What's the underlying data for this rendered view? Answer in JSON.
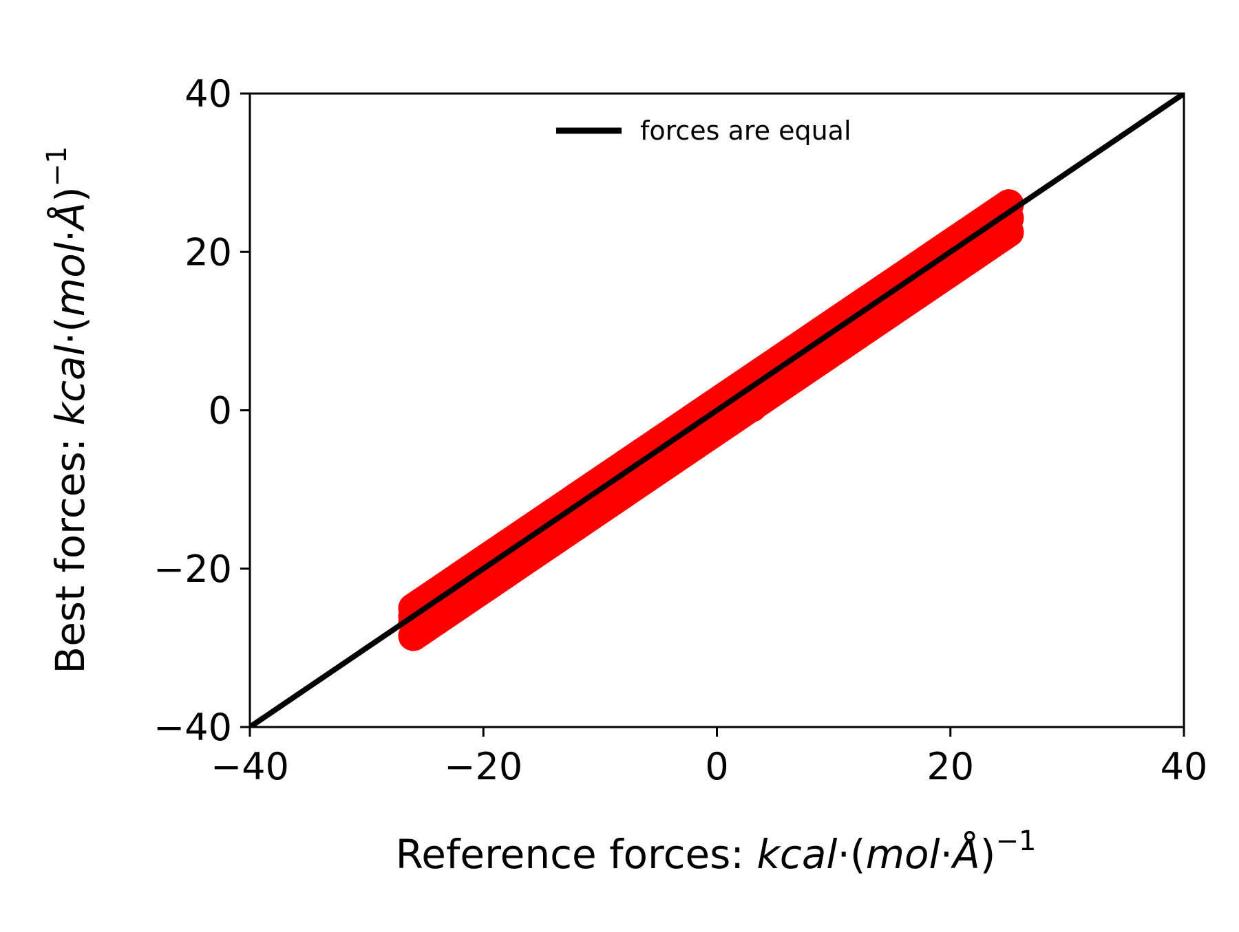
{
  "chart_data": {
    "type": "scatter",
    "xlabel": {
      "text": "Reference forces: ",
      "math_italic_1": "kcal",
      "dot": "·",
      "paren_open": "(",
      "math_italic_2": "mol",
      "math_italic_3": "Å",
      "paren_close": ")",
      "superscript": "−1"
    },
    "ylabel": {
      "text": "Best forces: ",
      "math_italic_1": "kcal",
      "dot": "·",
      "paren_open": "(",
      "math_italic_2": "mol",
      "math_italic_3": "Å",
      "paren_close": ")",
      "superscript": "−1"
    },
    "xlim": [
      -40,
      40
    ],
    "ylim": [
      -40,
      40
    ],
    "xticks": [
      -40,
      -20,
      0,
      20,
      40
    ],
    "yticks": [
      -40,
      -20,
      0,
      20,
      40
    ],
    "xtick_labels": [
      "−40",
      "−20",
      "0",
      "20",
      "40"
    ],
    "ytick_labels": [
      "−40",
      "−20",
      "0",
      "20",
      "40"
    ],
    "grid": false,
    "legend": {
      "placement": "upper center",
      "entries": [
        "forces are equal"
      ]
    },
    "series": [
      {
        "kind": "scatter",
        "color": "#ff0000",
        "x_range": [
          -26,
          25
        ],
        "y_offset_range": [
          -2.5,
          1.0
        ],
        "points": [
          [
            -26.0,
            -26.0
          ],
          [
            -25.2,
            -25.6
          ],
          [
            -24.5,
            -25.3
          ],
          [
            -23.8,
            -24.4
          ],
          [
            -23.0,
            -24.0
          ],
          [
            -22.3,
            -23.0
          ],
          [
            -21.5,
            -22.8
          ],
          [
            -20.7,
            -21.5
          ],
          [
            -19.8,
            -21.3
          ],
          [
            -19.0,
            -20.4
          ],
          [
            -18.0,
            -19.6
          ],
          [
            -17.0,
            -18.8
          ],
          [
            -16.0,
            -17.5
          ],
          [
            -15.0,
            -16.8
          ],
          [
            -14.0,
            -15.6
          ],
          [
            -13.0,
            -14.9
          ],
          [
            -12.0,
            -13.8
          ],
          [
            -11.0,
            -13.0
          ],
          [
            -10.0,
            -11.7
          ],
          [
            -9.0,
            -11.0
          ],
          [
            -8.0,
            -9.8
          ],
          [
            -7.0,
            -8.9
          ],
          [
            -6.0,
            -7.9
          ],
          [
            -5.0,
            -7.0
          ],
          [
            -4.0,
            -5.8
          ],
          [
            -3.0,
            -5.0
          ],
          [
            -2.0,
            -3.8
          ],
          [
            -1.0,
            -3.0
          ],
          [
            0.0,
            -2.0
          ],
          [
            1.0,
            -1.0
          ],
          [
            2.0,
            0.0
          ],
          [
            3.0,
            0.8
          ],
          [
            4.0,
            1.9
          ],
          [
            5.0,
            2.8
          ],
          [
            6.0,
            3.8
          ],
          [
            7.0,
            4.7
          ],
          [
            8.0,
            5.9
          ],
          [
            9.0,
            6.6
          ],
          [
            10.0,
            7.8
          ],
          [
            11.0,
            8.6
          ],
          [
            12.0,
            9.8
          ],
          [
            13.0,
            10.5
          ],
          [
            14.0,
            11.8
          ],
          [
            15.0,
            12.6
          ],
          [
            16.0,
            13.8
          ],
          [
            17.0,
            14.6
          ],
          [
            18.0,
            15.8
          ],
          [
            19.0,
            16.6
          ],
          [
            20.0,
            17.8
          ],
          [
            21.0,
            18.9
          ],
          [
            21.8,
            20.0
          ],
          [
            22.5,
            21.2
          ],
          [
            23.2,
            22.3
          ],
          [
            23.8,
            23.3
          ],
          [
            24.4,
            24.2
          ],
          [
            24.8,
            24.8
          ],
          [
            -24.0,
            -24.3
          ],
          [
            -20.0,
            -19.8
          ],
          [
            -15.0,
            -14.6
          ],
          [
            -10.0,
            -9.6
          ],
          [
            -5.0,
            -4.7
          ],
          [
            0.0,
            0.4
          ],
          [
            5.0,
            5.3
          ],
          [
            10.0,
            10.3
          ],
          [
            15.0,
            15.2
          ],
          [
            20.0,
            20.3
          ],
          [
            -22.0,
            -24.0
          ],
          [
            -17.0,
            -19.3
          ],
          [
            -12.0,
            -14.3
          ],
          [
            -7.0,
            -9.3
          ],
          [
            -2.0,
            -4.5
          ],
          [
            3.0,
            0.4
          ],
          [
            8.0,
            5.6
          ],
          [
            13.0,
            10.7
          ],
          [
            18.0,
            15.6
          ],
          [
            22.0,
            20.6
          ]
        ]
      },
      {
        "kind": "line",
        "name": "forces are equal",
        "color": "#000000",
        "x": [
          -40,
          40
        ],
        "y": [
          -40,
          40
        ]
      }
    ]
  }
}
